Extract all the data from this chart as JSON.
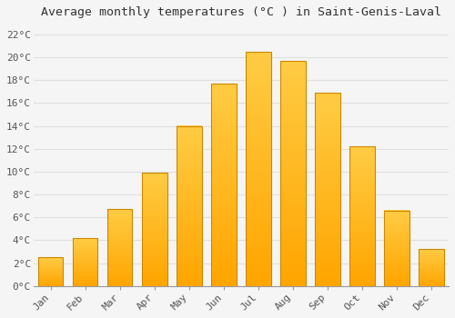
{
  "title": "Average monthly temperatures (°C ) in Saint-Genis-Laval",
  "months": [
    "Jan",
    "Feb",
    "Mar",
    "Apr",
    "May",
    "Jun",
    "Jul",
    "Aug",
    "Sep",
    "Oct",
    "Nov",
    "Dec"
  ],
  "values": [
    2.5,
    4.2,
    6.7,
    9.9,
    14.0,
    17.7,
    20.5,
    19.7,
    16.9,
    12.2,
    6.6,
    3.2
  ],
  "bar_color_top": "#FFCC44",
  "bar_color_bottom": "#FFA500",
  "bar_edge_color": "#CC8800",
  "ylim": [
    0,
    23
  ],
  "yticks": [
    0,
    2,
    4,
    6,
    8,
    10,
    12,
    14,
    16,
    18,
    20,
    22
  ],
  "ytick_labels": [
    "0°C",
    "2°C",
    "4°C",
    "6°C",
    "8°C",
    "10°C",
    "12°C",
    "14°C",
    "16°C",
    "18°C",
    "20°C",
    "22°C"
  ],
  "bg_color": "#f5f5f5",
  "grid_color": "#e0e0e0",
  "title_fontsize": 9.5,
  "tick_fontsize": 8,
  "font_family": "monospace",
  "bar_width": 0.72
}
